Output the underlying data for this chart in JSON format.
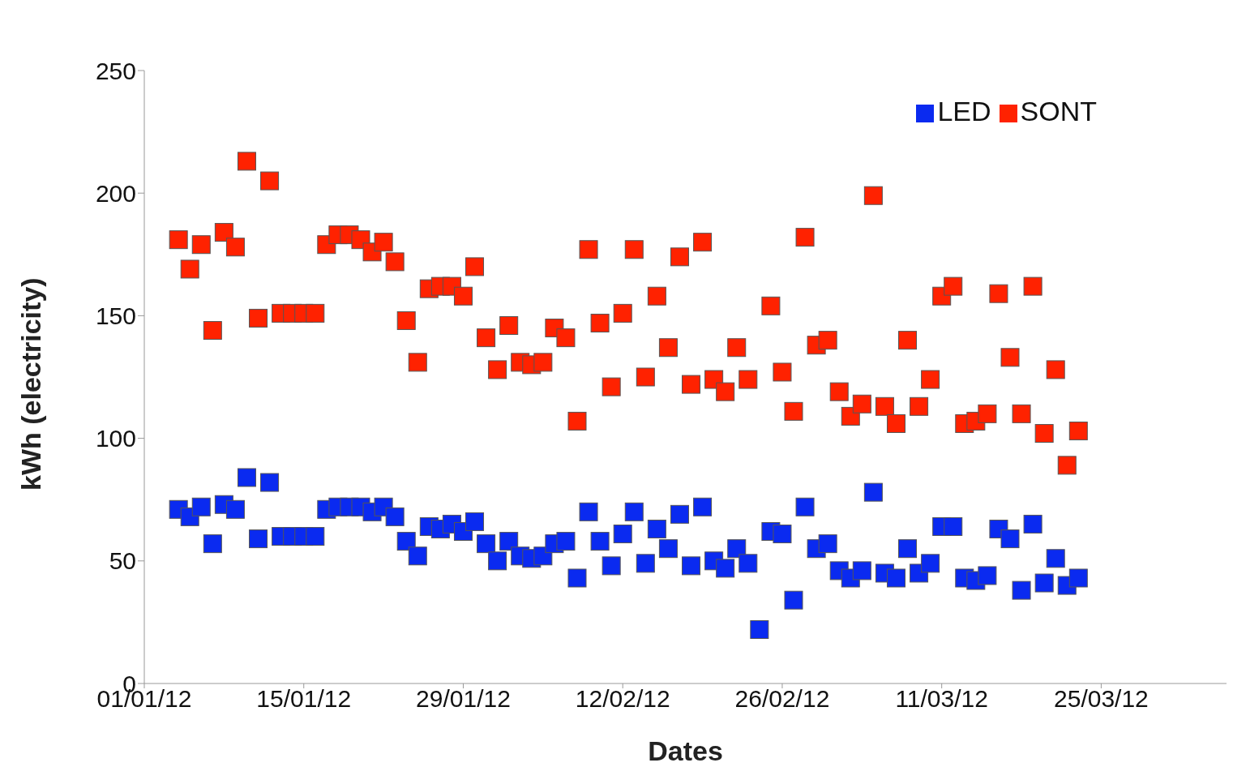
{
  "chart_data": {
    "type": "scatter",
    "xlabel": "Dates",
    "ylabel": "kWh (electricity)",
    "x": [
      "--01-04",
      "--01-05",
      "--01-06",
      "--01-07",
      "--01-08",
      "--01-09",
      "--01-10",
      "--01-11",
      "--01-12",
      "--01-13",
      "--01-14",
      "--01-15",
      "--01-16",
      "--01-17",
      "--01-18",
      "--01-19",
      "--01-20",
      "--01-21",
      "--01-22",
      "--01-23",
      "--01-24",
      "--01-25",
      "--01-26",
      "--01-27",
      "--01-28",
      "--01-29",
      "--01-30",
      "--01-31",
      "--02-01",
      "--02-02",
      "--02-03",
      "--02-04",
      "--02-05",
      "--02-06",
      "--02-07",
      "--02-08",
      "--02-09",
      "--02-10",
      "--02-11",
      "--02-12",
      "--02-13",
      "--02-14",
      "--02-15",
      "--02-16",
      "--02-17",
      "--02-18",
      "--02-19",
      "--02-20",
      "--02-21",
      "--02-22",
      "--02-23",
      "--02-24",
      "--02-25",
      "--02-26",
      "--02-27",
      "--02-28",
      "--02-29",
      "--03-01",
      "--03-02",
      "--03-03",
      "--03-04",
      "--03-05",
      "--03-06",
      "--03-07",
      "--03-08",
      "--03-09",
      "--03-10",
      "--03-11",
      "--03-12",
      "--03-13",
      "--03-14",
      "--03-15",
      "--03-16",
      "--03-17",
      "--03-18",
      "--03-19",
      "--03-20",
      "--03-21",
      "--03-22",
      "--03-23"
    ],
    "series": [
      {
        "name": "LED",
        "color": "#0a2af0",
        "values": [
          71,
          68,
          72,
          57,
          73,
          71,
          84,
          59,
          82,
          60,
          60,
          60,
          60,
          71,
          72,
          72,
          72,
          70,
          72,
          68,
          58,
          52,
          64,
          63,
          65,
          62,
          66,
          57,
          50,
          58,
          52,
          51,
          52,
          57,
          58,
          43,
          70,
          58,
          48,
          61,
          70,
          49,
          63,
          55,
          69,
          48,
          72,
          50,
          47,
          55,
          49,
          22,
          62,
          61,
          34,
          72,
          55,
          57,
          46,
          43,
          46,
          78,
          45,
          43,
          55,
          45,
          49,
          64,
          64,
          43,
          42,
          44,
          63,
          59,
          38,
          65,
          41,
          51,
          40,
          43
        ]
      },
      {
        "name": "SONT",
        "color": "#ff2200",
        "values": [
          181,
          169,
          179,
          144,
          184,
          178,
          213,
          149,
          205,
          151,
          151,
          151,
          151,
          179,
          183,
          183,
          181,
          176,
          180,
          172,
          148,
          131,
          161,
          162,
          162,
          158,
          170,
          141,
          128,
          146,
          131,
          130,
          131,
          145,
          141,
          107,
          177,
          147,
          121,
          151,
          177,
          125,
          158,
          137,
          174,
          122,
          180,
          124,
          119,
          137,
          124,
          null,
          154,
          127,
          111,
          182,
          138,
          140,
          119,
          109,
          114,
          199,
          113,
          106,
          140,
          113,
          124,
          158,
          162,
          106,
          107,
          110,
          159,
          133,
          110,
          162,
          102,
          128,
          89,
          103
        ]
      }
    ],
    "xlim": [
      "--01-01",
      "--04-05"
    ],
    "xticks": [
      {
        "value": "--01-01",
        "label": "01/01/12"
      },
      {
        "value": "--01-15",
        "label": "15/01/12"
      },
      {
        "value": "--01-29",
        "label": "29/01/12"
      },
      {
        "value": "--02-12",
        "label": "12/02/12"
      },
      {
        "value": "--02-26",
        "label": "26/02/12"
      },
      {
        "value": "--03-11",
        "label": "11/03/12"
      },
      {
        "value": "--03-25",
        "label": "25/03/12"
      }
    ],
    "ylim": [
      0,
      250
    ],
    "yticks": [
      0,
      50,
      100,
      150,
      200,
      250
    ],
    "legend": "top right",
    "marker": "square",
    "grid": false
  }
}
